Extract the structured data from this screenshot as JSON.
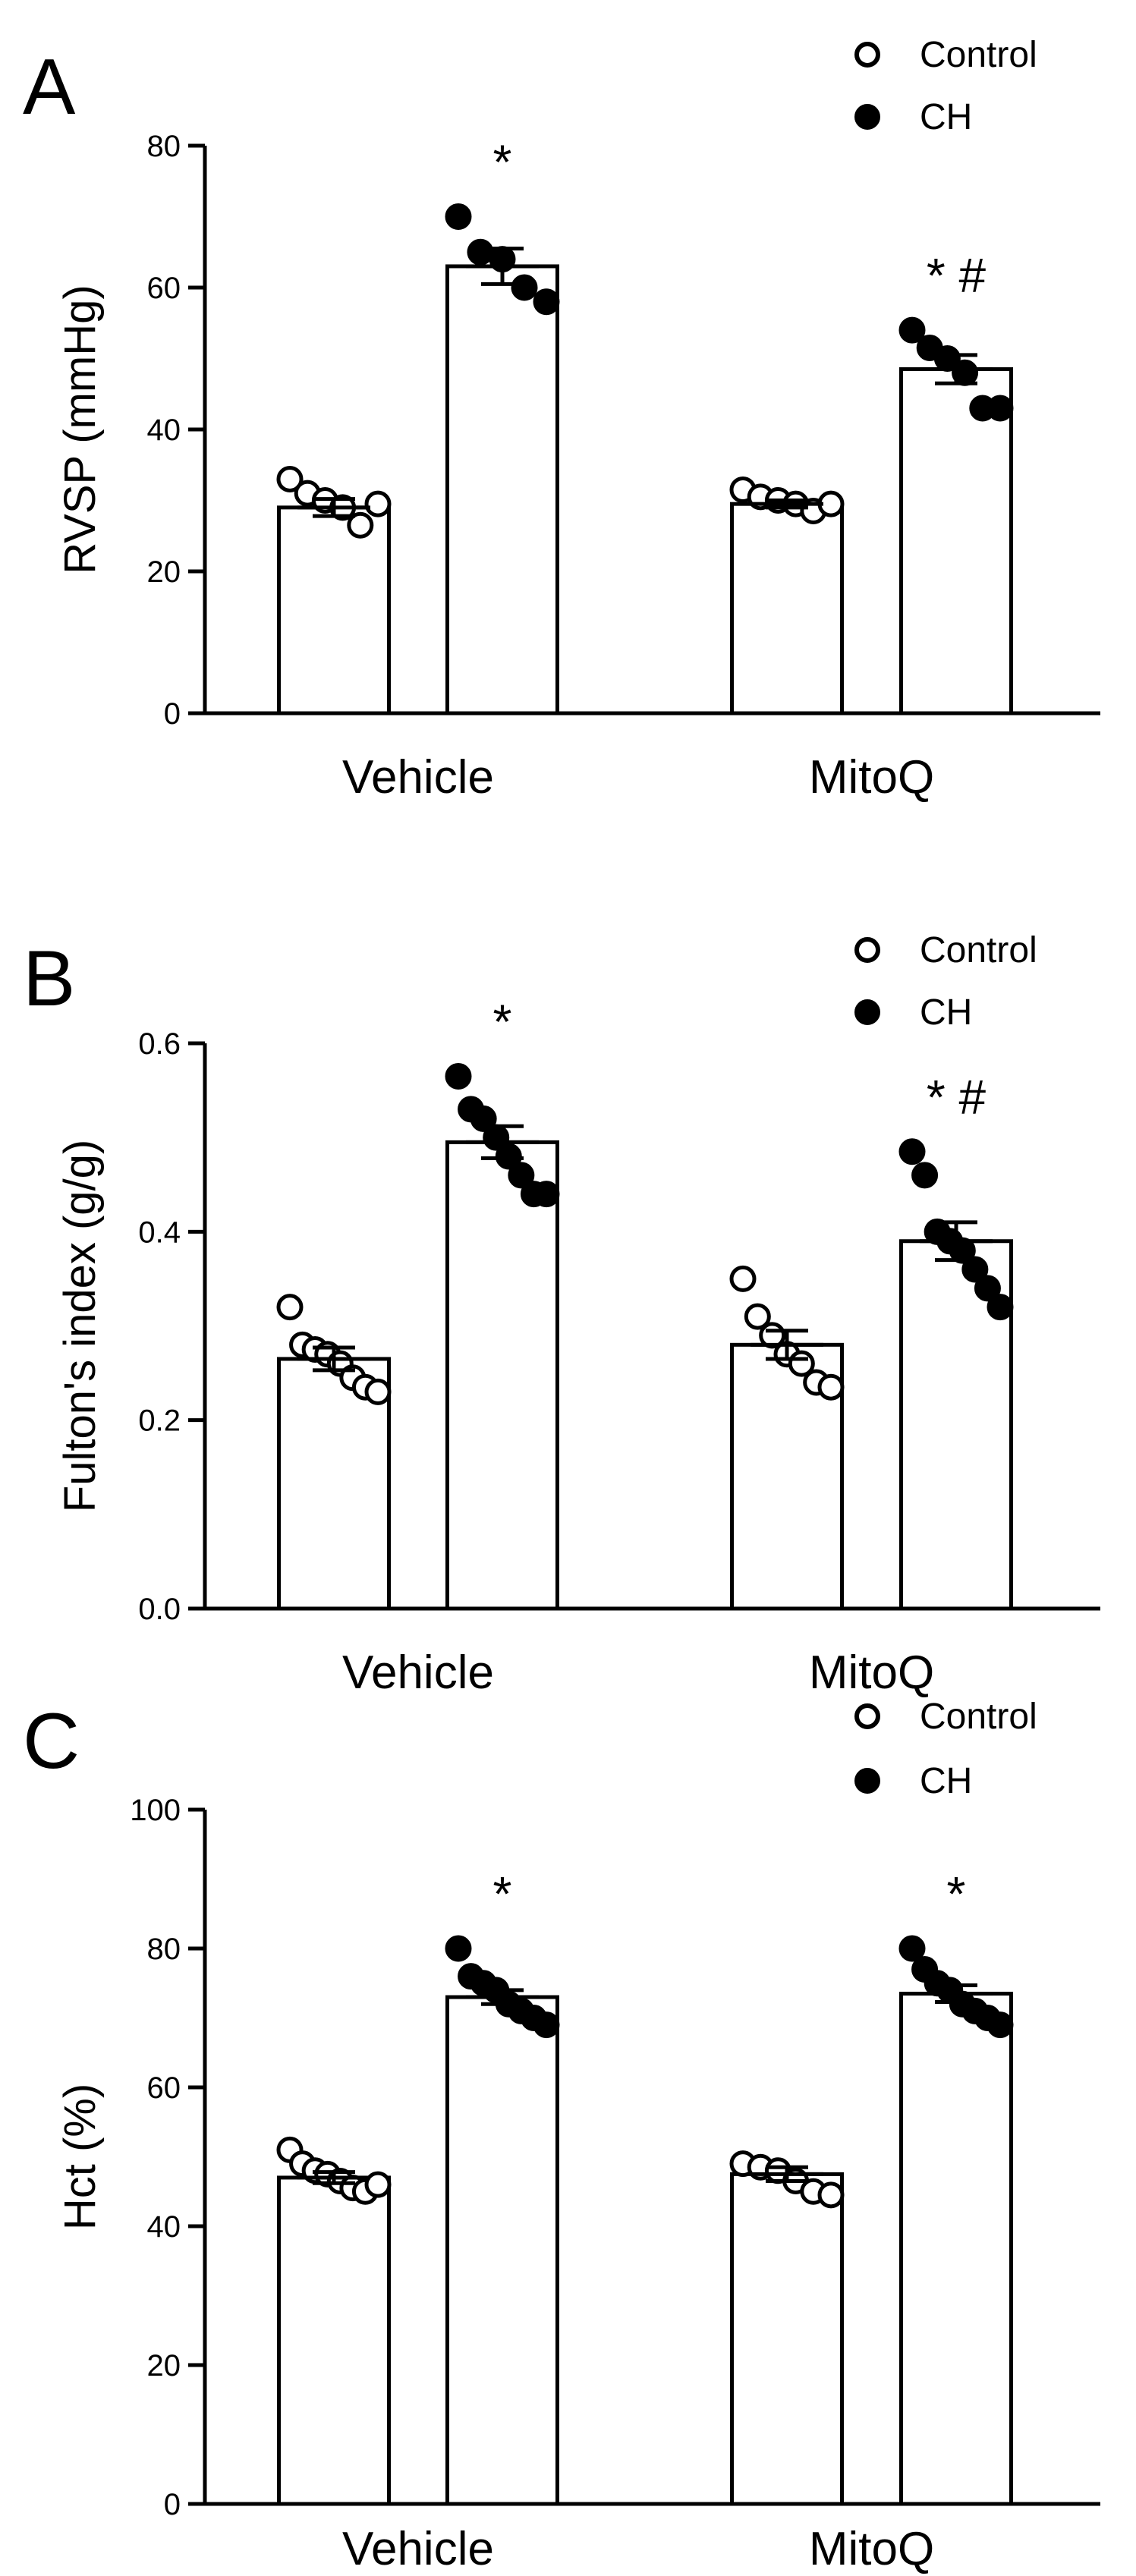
{
  "chart_data": [
    {
      "panel": "A",
      "type": "bar",
      "ylabel": "RVSP (mmHg)",
      "ylim": [
        0,
        80
      ],
      "yticks": [
        0,
        20,
        40,
        60,
        80
      ],
      "categories": [
        "Vehicle",
        "MitoQ"
      ],
      "legend": [
        "Control",
        "CH"
      ],
      "series": [
        {
          "name": "Control",
          "values": [
            29.0,
            29.5
          ],
          "sem": [
            1.2,
            0.5
          ],
          "points": [
            [
              33,
              31,
              30,
              29,
              26.5,
              29.5
            ],
            [
              31.5,
              30.5,
              30,
              29.5,
              28.5,
              29.5
            ]
          ],
          "annotation": [
            "",
            ""
          ]
        },
        {
          "name": "CH",
          "values": [
            63.0,
            48.5
          ],
          "sem": [
            2.5,
            2.0
          ],
          "points": [
            [
              70,
              65,
              64,
              60,
              58
            ],
            [
              54,
              51.5,
              50,
              48,
              43,
              43
            ]
          ],
          "annotation": [
            "*",
            "* #"
          ]
        }
      ]
    },
    {
      "panel": "B",
      "type": "bar",
      "ylabel": "Fulton's index (g/g)",
      "ylim": [
        0,
        0.6
      ],
      "yticks": [
        "0.0",
        "0.2",
        "0.4",
        "0.6"
      ],
      "categories": [
        "Vehicle",
        "MitoQ"
      ],
      "legend": [
        "Control",
        "CH"
      ],
      "series": [
        {
          "name": "Control",
          "values": [
            0.265,
            0.28
          ],
          "sem": [
            0.012,
            0.015
          ],
          "points": [
            [
              0.32,
              0.28,
              0.275,
              0.27,
              0.26,
              0.245,
              0.235,
              0.23
            ],
            [
              0.35,
              0.31,
              0.29,
              0.27,
              0.26,
              0.24,
              0.235
            ]
          ],
          "annotation": [
            "",
            ""
          ]
        },
        {
          "name": "CH",
          "values": [
            0.495,
            0.39
          ],
          "sem": [
            0.017,
            0.02
          ],
          "points": [
            [
              0.565,
              0.53,
              0.52,
              0.5,
              0.48,
              0.46,
              0.44,
              0.44
            ],
            [
              0.485,
              0.46,
              0.4,
              0.39,
              0.38,
              0.36,
              0.34,
              0.32
            ]
          ],
          "annotation": [
            "*",
            "* #"
          ]
        }
      ]
    },
    {
      "panel": "C",
      "type": "bar",
      "ylabel": "Hct (%)",
      "ylim": [
        0,
        100
      ],
      "yticks": [
        0,
        20,
        40,
        60,
        80,
        100
      ],
      "categories": [
        "Vehicle",
        "MitoQ"
      ],
      "legend": [
        "Control",
        "CH"
      ],
      "series": [
        {
          "name": "Control",
          "values": [
            47.0,
            47.5
          ],
          "sem": [
            0.8,
            1.0
          ],
          "points": [
            [
              51,
              49,
              48,
              47.5,
              46.5,
              45.5,
              45,
              46
            ],
            [
              49,
              48.5,
              48,
              46.5,
              45,
              44.5
            ]
          ],
          "annotation": [
            "",
            ""
          ]
        },
        {
          "name": "CH",
          "values": [
            73.0,
            73.5
          ],
          "sem": [
            1.0,
            1.2
          ],
          "points": [
            [
              80,
              76,
              75,
              74,
              72,
              71,
              70,
              69
            ],
            [
              80,
              77,
              75,
              74,
              72,
              71,
              70,
              69
            ]
          ],
          "annotation": [
            "*",
            "*"
          ]
        }
      ]
    }
  ]
}
